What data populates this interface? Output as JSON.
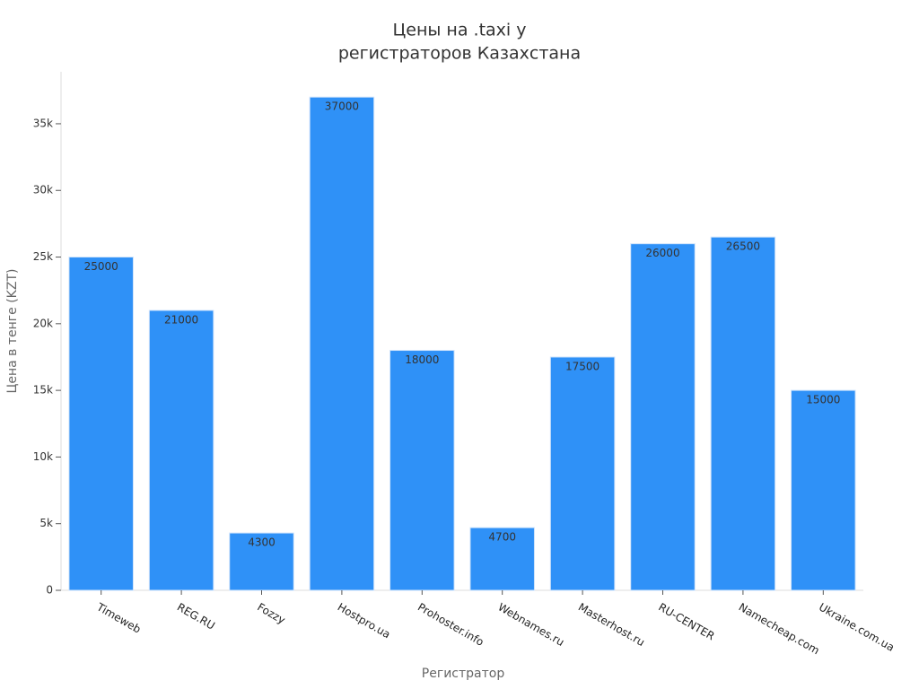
{
  "chart_data": {
    "type": "bar",
    "title": [
      "Цены на .taxi у",
      "регистраторов Казахстана"
    ],
    "x_label": "Регистратор",
    "y_label": "Цена в тенге (KZT)",
    "categories": [
      "Timeweb",
      "REG.RU",
      "Fozzy",
      "Hostpro.ua",
      "Prohoster.info",
      "Webnames.ru",
      "Masterhost.ru",
      "RU-CENTER",
      "Namecheap.com",
      "Ukraine.com.ua"
    ],
    "values": [
      25000,
      21000,
      4300,
      37000,
      18000,
      4700,
      17500,
      26000,
      26500,
      15000
    ],
    "color": "#2f91f7",
    "ylim": [
      0,
      38900
    ],
    "yticks": [
      0,
      {
        "value": 5000,
        "label": "5k"
      },
      {
        "value": 10000,
        "label": "10k"
      },
      {
        "value": 15000,
        "label": "15k"
      },
      {
        "value": 20000,
        "label": "20k"
      },
      {
        "value": 25000,
        "label": "25k"
      },
      {
        "value": 30000,
        "label": "30k"
      },
      {
        "value": 35000,
        "label": "35k"
      }
    ],
    "grid": false
  }
}
